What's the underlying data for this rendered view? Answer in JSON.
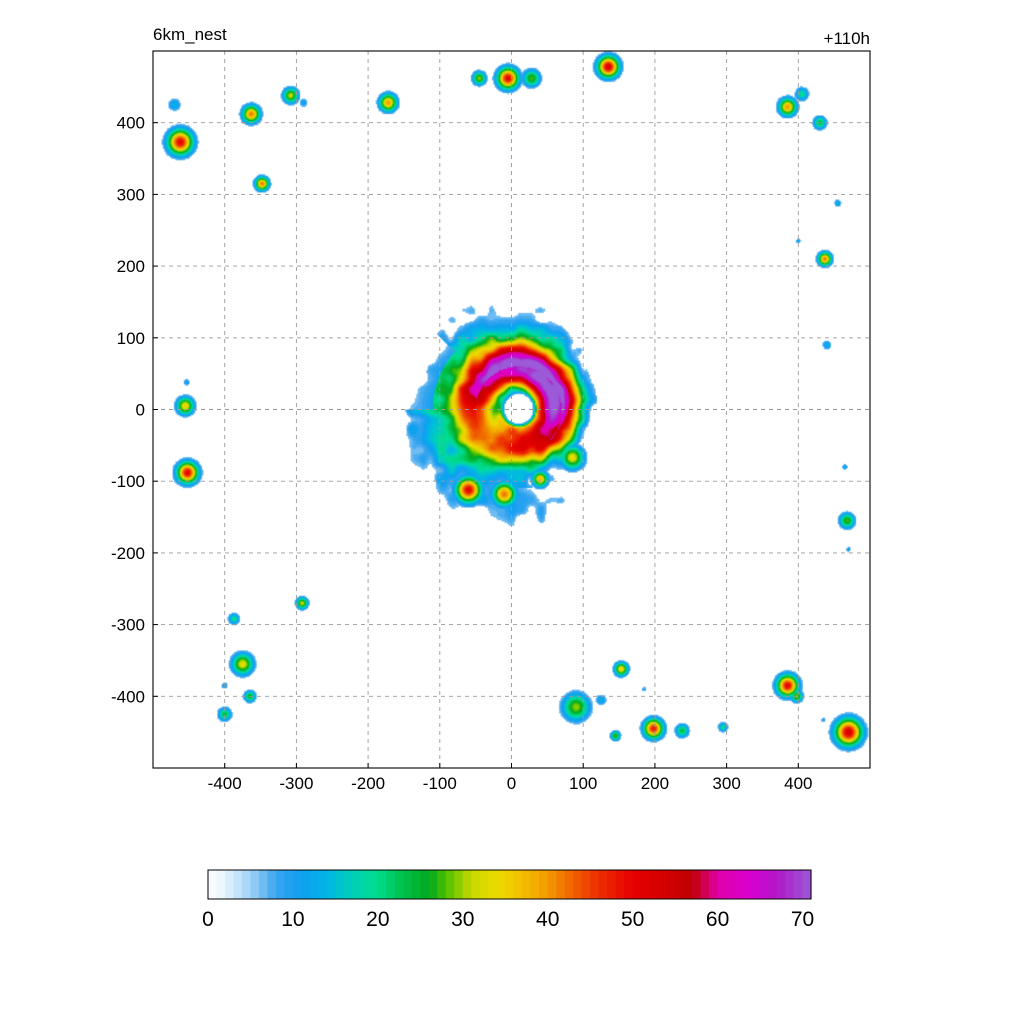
{
  "chart_data": {
    "type": "heatmap",
    "title_left": "6km_nest",
    "title_right": "+110h",
    "xlim": [
      -500,
      500
    ],
    "ylim": [
      -500,
      500
    ],
    "x_ticks": [
      -400,
      -300,
      -200,
      -100,
      0,
      100,
      200,
      300,
      400
    ],
    "y_ticks": [
      -400,
      -300,
      -200,
      -100,
      0,
      100,
      200,
      300,
      400
    ],
    "grid": true,
    "colorbar": {
      "min": 0,
      "max": 71,
      "ticks": [
        0,
        10,
        20,
        30,
        40,
        50,
        60,
        70
      ],
      "stops": [
        [
          0,
          "#ffffff"
        ],
        [
          2,
          "#e6f4fd"
        ],
        [
          5,
          "#9fd2f7"
        ],
        [
          8,
          "#3aa5ef"
        ],
        [
          11,
          "#0d9ff0"
        ],
        [
          14,
          "#02b4e6"
        ],
        [
          17,
          "#00d0b8"
        ],
        [
          20,
          "#00dc8c"
        ],
        [
          23,
          "#00c04a"
        ],
        [
          26,
          "#00a81e"
        ],
        [
          28,
          "#4cc000"
        ],
        [
          31,
          "#c8d800"
        ],
        [
          34,
          "#ecdc00"
        ],
        [
          37,
          "#f2be00"
        ],
        [
          40,
          "#f39a00"
        ],
        [
          43,
          "#ef6000"
        ],
        [
          46,
          "#ec2e00"
        ],
        [
          50,
          "#e60000"
        ],
        [
          54,
          "#d20000"
        ],
        [
          57,
          "#c00000"
        ],
        [
          60,
          "#e000a8"
        ],
        [
          64,
          "#d800d0"
        ],
        [
          67,
          "#b018c8"
        ],
        [
          71,
          "#9c5ad8"
        ]
      ]
    },
    "storm": {
      "center": [
        10,
        0
      ],
      "eye_radius": 18,
      "peak": 53,
      "rmw": 55,
      "outer_radius": 190
    },
    "cells": [
      {
        "x": -462,
        "y": 373,
        "v": 50,
        "r": 13
      },
      {
        "x": -470,
        "y": 425,
        "v": 14,
        "r": 7
      },
      {
        "x": -363,
        "y": 412,
        "v": 42,
        "r": 9
      },
      {
        "x": -308,
        "y": 438,
        "v": 32,
        "r": 8
      },
      {
        "x": -290,
        "y": 428,
        "v": 12,
        "r": 5
      },
      {
        "x": -348,
        "y": 315,
        "v": 42,
        "r": 7
      },
      {
        "x": -172,
        "y": 428,
        "v": 40,
        "r": 9
      },
      {
        "x": -5,
        "y": 462,
        "v": 50,
        "r": 11
      },
      {
        "x": -45,
        "y": 462,
        "v": 30,
        "r": 7
      },
      {
        "x": 28,
        "y": 462,
        "v": 28,
        "r": 9
      },
      {
        "x": 135,
        "y": 478,
        "v": 52,
        "r": 11
      },
      {
        "x": 385,
        "y": 422,
        "v": 40,
        "r": 9
      },
      {
        "x": 405,
        "y": 440,
        "v": 20,
        "r": 7
      },
      {
        "x": 430,
        "y": 400,
        "v": 24,
        "r": 7
      },
      {
        "x": 455,
        "y": 288,
        "v": 14,
        "r": 4
      },
      {
        "x": 437,
        "y": 210,
        "v": 42,
        "r": 7
      },
      {
        "x": 440,
        "y": 90,
        "v": 14,
        "r": 5
      },
      {
        "x": 400,
        "y": 235,
        "v": 12,
        "r": 3
      },
      {
        "x": -455,
        "y": 5,
        "v": 36,
        "r": 9
      },
      {
        "x": -453,
        "y": 38,
        "v": 12,
        "r": 4
      },
      {
        "x": -452,
        "y": -88,
        "v": 50,
        "r": 11
      },
      {
        "x": -466,
        "y": -98,
        "v": 14,
        "r": 4
      },
      {
        "x": 468,
        "y": -155,
        "v": 28,
        "r": 8
      },
      {
        "x": 470,
        "y": -195,
        "v": 12,
        "r": 3
      },
      {
        "x": 465,
        "y": -80,
        "v": 14,
        "r": 3
      },
      {
        "x": -292,
        "y": -270,
        "v": 32,
        "r": 6
      },
      {
        "x": -387,
        "y": -292,
        "v": 20,
        "r": 6
      },
      {
        "x": -375,
        "y": -355,
        "v": 34,
        "r": 11
      },
      {
        "x": -365,
        "y": -400,
        "v": 26,
        "r": 6
      },
      {
        "x": -400,
        "y": -425,
        "v": 24,
        "r": 7
      },
      {
        "x": -400,
        "y": -385,
        "v": 12,
        "r": 4
      },
      {
        "x": 90,
        "y": -415,
        "v": 30,
        "r": 14
      },
      {
        "x": 125,
        "y": -405,
        "v": 14,
        "r": 6
      },
      {
        "x": 153,
        "y": -362,
        "v": 36,
        "r": 7
      },
      {
        "x": 145,
        "y": -455,
        "v": 28,
        "r": 5
      },
      {
        "x": 198,
        "y": -445,
        "v": 48,
        "r": 10
      },
      {
        "x": 238,
        "y": -448,
        "v": 24,
        "r": 7
      },
      {
        "x": 295,
        "y": -443,
        "v": 20,
        "r": 5
      },
      {
        "x": 385,
        "y": -385,
        "v": 50,
        "r": 11
      },
      {
        "x": 398,
        "y": -400,
        "v": 30,
        "r": 6
      },
      {
        "x": 470,
        "y": -450,
        "v": 52,
        "r": 14
      },
      {
        "x": 185,
        "y": -390,
        "v": 10,
        "r": 3
      },
      {
        "x": 435,
        "y": -433,
        "v": 10,
        "r": 3
      },
      {
        "x": -60,
        "y": -112,
        "v": 50,
        "r": 13
      },
      {
        "x": -10,
        "y": -118,
        "v": 42,
        "r": 12
      },
      {
        "x": 40,
        "y": -97,
        "v": 38,
        "r": 8
      },
      {
        "x": 85,
        "y": -67,
        "v": 34,
        "r": 12
      }
    ]
  }
}
